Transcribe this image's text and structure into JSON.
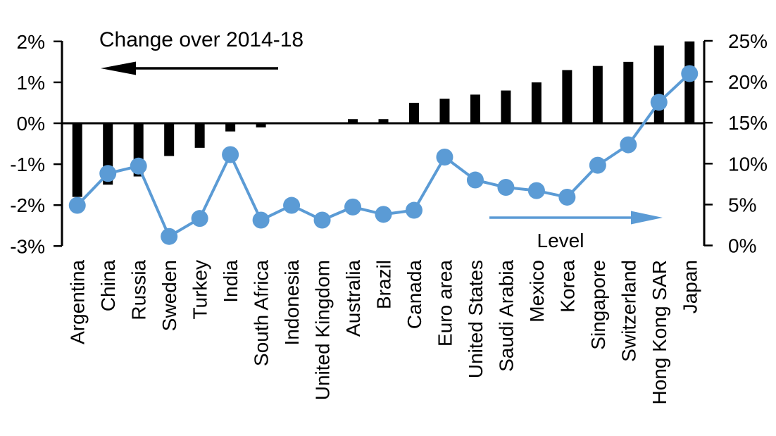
{
  "chart_data": {
    "type": "combo",
    "categories": [
      "Argentina",
      "China",
      "Russia",
      "Sweden",
      "Turkey",
      "India",
      "South Africa",
      "Indonesia",
      "United Kingdom",
      "Australia",
      "Brazil",
      "Canada",
      "Euro area",
      "United States",
      "Saudi Arabia",
      "Mexico",
      "Korea",
      "Singapore",
      "Switzerland",
      "Hong Kong SAR",
      "Japan"
    ],
    "series": [
      {
        "name": "Change over 2014-18",
        "type": "bar",
        "axis": "left",
        "color": "#000000",
        "values": [
          -1.8,
          -1.5,
          -1.3,
          -0.8,
          -0.6,
          -0.2,
          -0.1,
          0,
          0,
          0.1,
          0.1,
          0.5,
          0.6,
          0.7,
          0.8,
          1.0,
          1.3,
          1.4,
          1.5,
          1.9,
          2.0
        ]
      },
      {
        "name": "Level",
        "type": "line",
        "axis": "right",
        "color": "#5B9BD5",
        "values": [
          4.9,
          8.8,
          9.7,
          1.1,
          3.3,
          11.1,
          3.1,
          4.9,
          3.1,
          4.7,
          3.8,
          4.3,
          10.8,
          8.0,
          7.1,
          6.7,
          5.9,
          9.8,
          12.3,
          17.5,
          21.0
        ]
      }
    ],
    "left_axis": {
      "tick_labels": [
        "2%",
        "1%",
        "0%",
        "-1%",
        "-2%",
        "-3%"
      ],
      "tick_values": [
        2,
        1,
        0,
        -1,
        -2,
        -3
      ],
      "range": [
        -3,
        2
      ]
    },
    "right_axis": {
      "tick_labels": [
        "25%",
        "20%",
        "15%",
        "10%",
        "5%",
        "0%"
      ],
      "tick_values": [
        25,
        20,
        15,
        10,
        5,
        0
      ],
      "range": [
        0,
        25
      ]
    },
    "annotations": {
      "bar_label": {
        "text": "Change over 2014-18",
        "arrow": "left",
        "color": "#000000"
      },
      "line_label": {
        "text": "Level",
        "arrow": "right",
        "color": "#5B9BD5"
      }
    },
    "grid": false,
    "legend_position": "in-plot arrows"
  },
  "colors": {
    "background": "#FFFFFF",
    "bar": "#000000",
    "line": "#5B9BD5",
    "text": "#000000"
  }
}
